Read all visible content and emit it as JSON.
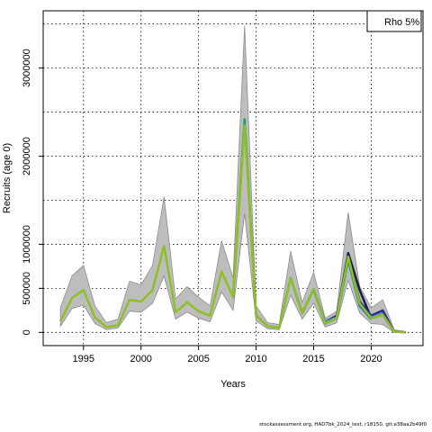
{
  "chart_data": {
    "type": "line",
    "xlabel": "Years",
    "ylabel": "Recruits (age 0)",
    "xlim": [
      1991.5,
      2024.5
    ],
    "ylim": [
      -150000,
      3650000
    ],
    "x_ticks": [
      1995,
      2000,
      2005,
      2010,
      2015,
      2020
    ],
    "y_ticks": [
      0,
      500000,
      1000000,
      2000000,
      3000000
    ],
    "y_tick_labels": [
      "0",
      "500000",
      "1000000",
      "2000000",
      "3000000"
    ],
    "grid": true,
    "legend": {
      "position": "top-right",
      "text": "Rho 5%"
    },
    "series_colors": [
      "#8fbf24",
      "#1a9f78",
      "#2a7fb0",
      "#4a8fc8",
      "#2a2a8a",
      "#1a1a4a"
    ],
    "base": {
      "x": [
        1993,
        1994,
        1995,
        1996,
        1997,
        1998,
        1999,
        2000,
        2001,
        2002,
        2003,
        2004,
        2005,
        2006,
        2007,
        2008,
        2009,
        2010,
        2011,
        2012,
        2013,
        2014,
        2015,
        2016,
        2017,
        2018,
        2019,
        2020,
        2021,
        2022,
        2023
      ],
      "y": [
        130000,
        390000,
        480000,
        170000,
        60000,
        80000,
        370000,
        350000,
        480000,
        980000,
        230000,
        340000,
        240000,
        190000,
        690000,
        400000,
        2350000,
        190000,
        70000,
        50000,
        620000,
        220000,
        490000,
        100000,
        160000,
        860000,
        330000,
        160000,
        200000,
        10000,
        0
      ],
      "lower": [
        70000,
        270000,
        310000,
        100000,
        30000,
        50000,
        240000,
        230000,
        330000,
        640000,
        150000,
        230000,
        160000,
        120000,
        460000,
        250000,
        1350000,
        130000,
        40000,
        30000,
        420000,
        150000,
        330000,
        60000,
        110000,
        590000,
        220000,
        100000,
        90000,
        0,
        0
      ],
      "upper": [
        280000,
        640000,
        760000,
        300000,
        110000,
        150000,
        580000,
        540000,
        760000,
        1540000,
        380000,
        520000,
        400000,
        300000,
        1040000,
        620000,
        3480000,
        300000,
        110000,
        90000,
        920000,
        340000,
        680000,
        160000,
        240000,
        1360000,
        520000,
        280000,
        370000,
        30000,
        10000
      ]
    },
    "peels": [
      {
        "x": [
          2016,
          2017,
          2018,
          2019,
          2020,
          2021,
          2022,
          2023
        ],
        "y": [
          100000,
          170000,
          900000,
          480000,
          160000,
          200000,
          10000,
          0
        ]
      },
      {
        "x": [
          2015,
          2016,
          2017,
          2018,
          2019,
          2020,
          2021,
          2022
        ],
        "y": [
          480000,
          120000,
          190000,
          850000,
          350000,
          190000,
          250000,
          5000
        ]
      },
      {
        "x": [
          2014,
          2015,
          2016,
          2017,
          2018,
          2019,
          2020,
          2021
        ],
        "y": [
          220000,
          490000,
          120000,
          170000,
          830000,
          320000,
          170000,
          220000
        ]
      },
      {
        "x": [
          2013,
          2014,
          2015,
          2016,
          2017,
          2018,
          2019,
          2020
        ],
        "y": [
          620000,
          220000,
          490000,
          100000,
          160000,
          820000,
          300000,
          150000
        ]
      },
      {
        "x": [
          2008,
          2009,
          2010,
          2011,
          2012,
          2013,
          2014,
          2015,
          2016,
          2017,
          2018,
          2019
        ],
        "y": [
          400000,
          2420000,
          190000,
          70000,
          50000,
          620000,
          220000,
          490000,
          100000,
          160000,
          830000,
          320000
        ]
      }
    ],
    "footer": "stockassessment.org, HAD7bk_2024_test, r18150, git:e38aa2b49f0"
  }
}
